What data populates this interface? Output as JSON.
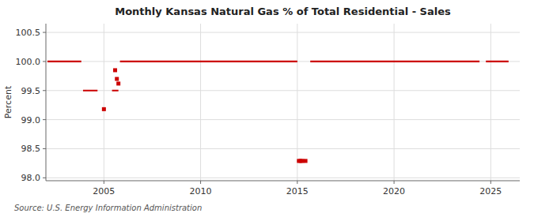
{
  "chart_data": {
    "type": "line",
    "title": "Monthly Kansas Natural Gas % of Total Residential - Sales",
    "ylabel": "Percent",
    "annotation": "Source: U.S. Energy Information Administration",
    "xlim": [
      2002.0,
      2026.5
    ],
    "ylim": [
      97.95,
      100.65
    ],
    "xticks": [
      2005,
      2010,
      2015,
      2020,
      2025
    ],
    "yticks": [
      {
        "value": 98.0,
        "label": "98.0"
      },
      98.5,
      {
        "value": 99.0,
        "label": "99.0"
      },
      99.5,
      {
        "value": 100.0,
        "label": "100.0"
      },
      100.5
    ],
    "grid": true,
    "series": [
      {
        "type": "line",
        "color": "#cc0000",
        "x": [
          2002.08,
          2003.83,
          null,
          2005.83,
          2015.0,
          null,
          2015.67,
          2024.42,
          null,
          2024.75,
          2025.92
        ],
        "values": [
          100.0,
          100.0,
          null,
          100.0,
          100.0,
          null,
          100.0,
          100.0,
          null,
          100.0,
          100.0
        ]
      },
      {
        "type": "line",
        "color": "#cc0000",
        "x": [
          2003.92,
          2004.67,
          null,
          2005.42,
          2005.75
        ],
        "values": [
          99.5,
          99.5,
          null,
          99.5,
          99.5
        ]
      },
      {
        "type": "scatter",
        "color": "#cc0000",
        "marker": "square",
        "x": [
          2005.0,
          2005.58,
          2005.67,
          2005.75,
          2015.08,
          2015.17,
          2015.25,
          2015.42
        ],
        "values": [
          99.18,
          99.85,
          99.7,
          99.62,
          98.29,
          98.29,
          98.29,
          98.29
        ]
      }
    ]
  }
}
